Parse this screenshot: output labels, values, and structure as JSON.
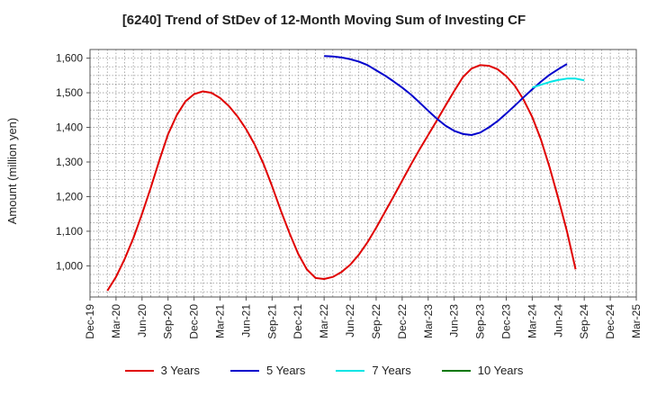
{
  "chart_data": {
    "type": "line",
    "title": "[6240]  Trend of StDev of 12-Month Moving Sum of Investing CF",
    "ylabel": "Amount (million yen)",
    "xlabel": "",
    "ylim": [
      910,
      1625
    ],
    "yticks": [
      1000,
      1100,
      1200,
      1300,
      1400,
      1500,
      1600
    ],
    "ytick_labels": [
      "1,000",
      "1,100",
      "1,200",
      "1,300",
      "1,400",
      "1,500",
      "1,600"
    ],
    "x_categories": [
      "Dec-19",
      "Mar-20",
      "Jun-20",
      "Sep-20",
      "Dec-20",
      "Mar-21",
      "Jun-21",
      "Sep-21",
      "Dec-21",
      "Mar-22",
      "Jun-22",
      "Sep-22",
      "Dec-22",
      "Mar-23",
      "Jun-23",
      "Sep-23",
      "Dec-23",
      "Mar-24",
      "Jun-24",
      "Sep-24",
      "Dec-24",
      "Mar-25"
    ],
    "grid": true,
    "legend_position": "bottom",
    "series": [
      {
        "name": "3 Years",
        "color": "#e00000",
        "start_index": 2,
        "values": [
          928,
          968,
          1020,
          1080,
          1150,
          1225,
          1305,
          1380,
          1435,
          1475,
          1496,
          1504,
          1500,
          1485,
          1462,
          1432,
          1395,
          1350,
          1295,
          1230,
          1160,
          1095,
          1035,
          990,
          965,
          962,
          968,
          982,
          1003,
          1032,
          1068,
          1110,
          1155,
          1200,
          1246,
          1292,
          1336,
          1378,
          1420,
          1463,
          1505,
          1545,
          1570,
          1580,
          1578,
          1568,
          1548,
          1520,
          1480,
          1430,
          1365,
          1285,
          1195,
          1100,
          990
        ]
      },
      {
        "name": "5 Years",
        "color": "#0000cc",
        "start_index": 27,
        "values": [
          1606,
          1605,
          1602,
          1597,
          1590,
          1580,
          1565,
          1550,
          1533,
          1515,
          1495,
          1472,
          1448,
          1425,
          1405,
          1390,
          1381,
          1378,
          1385,
          1400,
          1418,
          1440,
          1463,
          1487,
          1510,
          1532,
          1552,
          1568,
          1583
        ]
      },
      {
        "name": "7 Years",
        "color": "#00e5e5",
        "start_index": 51,
        "values": [
          1515,
          1523,
          1531,
          1537,
          1541,
          1541,
          1536
        ]
      },
      {
        "name": "10 Years",
        "color": "#007700",
        "start_index": 0,
        "values": []
      }
    ]
  }
}
